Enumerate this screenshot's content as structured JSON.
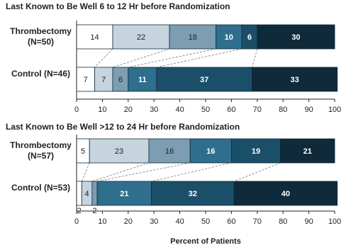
{
  "chart_data": [
    {
      "type": "stacked-bar",
      "title": "Last Known to Be Well 6 to 12 Hr before Randomization",
      "categories": [
        "Thrombectomy (N=50)",
        "Control (N=46)"
      ],
      "series": [
        {
          "color": "#ffffff",
          "values": [
            14,
            7
          ]
        },
        {
          "color": "#c6d4dd",
          "values": [
            22,
            7
          ]
        },
        {
          "color": "#7d9db2",
          "values": [
            18,
            6
          ]
        },
        {
          "color": "#2f6e8c",
          "values": [
            10,
            11
          ]
        },
        {
          "color": "#1b4f69",
          "values": [
            6,
            37
          ]
        },
        {
          "color": "#0e2a3b",
          "values": [
            30,
            33
          ]
        }
      ],
      "xlim": [
        0,
        100
      ],
      "xticks": [
        0,
        10,
        20,
        30,
        40,
        50,
        60,
        70,
        80,
        90,
        100
      ]
    },
    {
      "type": "stacked-bar",
      "title": "Last Known to Be Well >12 to 24 Hr before Randomization",
      "categories": [
        "Thrombectomy (N=57)",
        "Control (N=53)"
      ],
      "series": [
        {
          "color": "#ffffff",
          "values": [
            5,
            2
          ]
        },
        {
          "color": "#c6d4dd",
          "values": [
            23,
            4
          ]
        },
        {
          "color": "#7d9db2",
          "values": [
            16,
            2
          ]
        },
        {
          "color": "#2f6e8c",
          "values": [
            16,
            21
          ]
        },
        {
          "color": "#1b4f69",
          "values": [
            19,
            32
          ]
        },
        {
          "color": "#0e2a3b",
          "values": [
            21,
            40
          ]
        }
      ],
      "xlim": [
        0,
        100
      ],
      "xticks": [
        0,
        10,
        20,
        30,
        40,
        50,
        60,
        70,
        80,
        90,
        100
      ],
      "xlabel": "Percent of Patients"
    }
  ]
}
